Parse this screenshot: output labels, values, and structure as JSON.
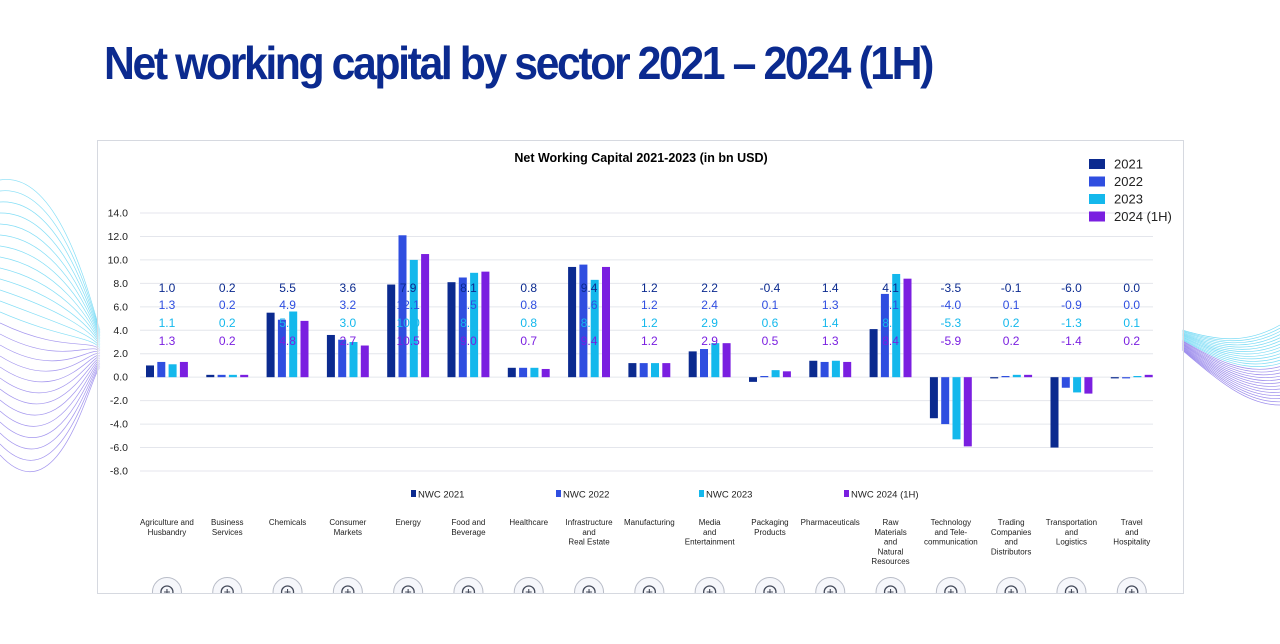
{
  "page": {
    "title": "Net working capital by sector 2021 – 2024 (1H)"
  },
  "colors": {
    "y2021": "#0b2a8f",
    "y2022": "#2f4ee0",
    "y2023": "#14b8ec",
    "y2024": "#7a1fe0",
    "title": "#0b2a8f",
    "grid": "#e4e6ec",
    "axis_text": "#222222"
  },
  "chart_data": {
    "type": "bar",
    "title": "Net Working Capital 2021-2023 (in bn USD)",
    "xlabel": "",
    "ylabel": "",
    "ylim": [
      -8,
      14
    ],
    "yticks": [
      "14.0",
      "12.0",
      "10.0",
      "8.0",
      "6.0",
      "4.0",
      "2.0",
      "0.0",
      "-2.0",
      "-4.0",
      "-6.0",
      "-8.0"
    ],
    "grid": true,
    "legend_top": [
      "2021",
      "2022",
      "2023",
      "2024 (1H)"
    ],
    "legend_bottom": [
      "NWC 2021",
      "NWC 2022",
      "NWC 2023",
      "NWC 2024 (1H)"
    ],
    "categories": [
      {
        "label": [
          "Agriculture and",
          "Husbandry"
        ],
        "icon": "bull-icon"
      },
      {
        "label": [
          "Business",
          "Services"
        ],
        "icon": "handshake-gear-icon"
      },
      {
        "label": [
          "Chemicals"
        ],
        "icon": "flask-icon"
      },
      {
        "label": [
          "Consumer",
          "Markets"
        ],
        "icon": "person-icon"
      },
      {
        "label": [
          "Energy"
        ],
        "icon": "lightning-icon"
      },
      {
        "label": [
          "Food and",
          "Beverage"
        ],
        "icon": "truck-food-icon"
      },
      {
        "label": [
          "Healthcare"
        ],
        "icon": "medical-cross-icon"
      },
      {
        "label": [
          "Infrastructure",
          "and",
          "Real Estate"
        ],
        "icon": "building-icon"
      },
      {
        "label": [
          "Manufacturing"
        ],
        "icon": "gear-icon"
      },
      {
        "label": [
          "Media",
          "and",
          "Entertainment"
        ],
        "icon": "camera-icon"
      },
      {
        "label": [
          "Packaging",
          "Products"
        ],
        "icon": "box-icon"
      },
      {
        "label": [
          "Pharmaceuticals"
        ],
        "icon": "pills-icon"
      },
      {
        "label": [
          "Raw",
          "Materials",
          "and",
          "Natural",
          "Resources"
        ],
        "icon": "gear-leaf-icon"
      },
      {
        "label": [
          "Technology",
          "and Tele-",
          "communication"
        ],
        "icon": "brain-gear-icon"
      },
      {
        "label": [
          "Trading",
          "Companies",
          "and",
          "Distributors"
        ],
        "icon": "people-icon"
      },
      {
        "label": [
          "Transportation",
          "and",
          "Logistics"
        ],
        "icon": "truck-icon"
      },
      {
        "label": [
          "Travel",
          "and",
          "Hospitality"
        ],
        "icon": "plane-icon"
      }
    ],
    "series": [
      {
        "name": "NWC 2021",
        "values": [
          1.0,
          0.2,
          5.5,
          3.6,
          7.9,
          8.1,
          0.8,
          9.4,
          1.2,
          2.2,
          -0.4,
          1.4,
          4.1,
          -3.5,
          -0.1,
          -6.0,
          0.0
        ],
        "labels": [
          "1.0",
          "0.2",
          "5.5",
          "3.6",
          "7.9",
          "8.1",
          "0.8",
          "9.4",
          "1.2",
          "2.2",
          "-0.4",
          "1.4",
          "4.1",
          "-3.5",
          "-0.1",
          "-6.0",
          "0.0"
        ]
      },
      {
        "name": "NWC 2022",
        "values": [
          1.3,
          0.2,
          4.9,
          3.2,
          12.1,
          8.5,
          0.8,
          9.6,
          1.2,
          2.4,
          0.1,
          1.3,
          7.1,
          -4.0,
          0.1,
          -0.9,
          0.0
        ],
        "labels": [
          "1.3",
          "0.2",
          "4.9",
          "3.2",
          "12.1",
          "8.5",
          "0.8",
          "9.6",
          "1.2",
          "2.4",
          "0.1",
          "1.3",
          "7.1",
          "-4.0",
          "0.1",
          "-0.9",
          "0.0"
        ]
      },
      {
        "name": "NWC 2023",
        "values": [
          1.1,
          0.2,
          5.6,
          3.0,
          10.0,
          8.9,
          0.8,
          8.3,
          1.2,
          2.9,
          0.6,
          1.4,
          8.8,
          -5.3,
          0.2,
          -1.3,
          0.1
        ],
        "labels": [
          "1.1",
          "0.2",
          "5.6",
          "3.0",
          "10.0",
          "8.9",
          "0.8",
          "8.3",
          "1.2",
          "2.9",
          "0.6",
          "1.4",
          "8.8",
          "-5.3",
          "0.2",
          "-1.3",
          "0.1"
        ]
      },
      {
        "name": "NWC 2024 (1H)",
        "values": [
          1.3,
          0.2,
          4.8,
          2.7,
          10.5,
          9.0,
          0.7,
          9.4,
          1.2,
          2.9,
          0.5,
          1.3,
          8.4,
          -5.9,
          0.2,
          -1.4,
          0.2
        ],
        "labels": [
          "1.3",
          "0.2",
          "4.8",
          "2.7",
          "10.5",
          "9.0",
          "0.7",
          "9.4",
          "1.2",
          "2.9",
          "0.5",
          "1.3",
          "8.4",
          "-5.9",
          "0.2",
          "-1.4",
          "0.2"
        ]
      }
    ]
  }
}
